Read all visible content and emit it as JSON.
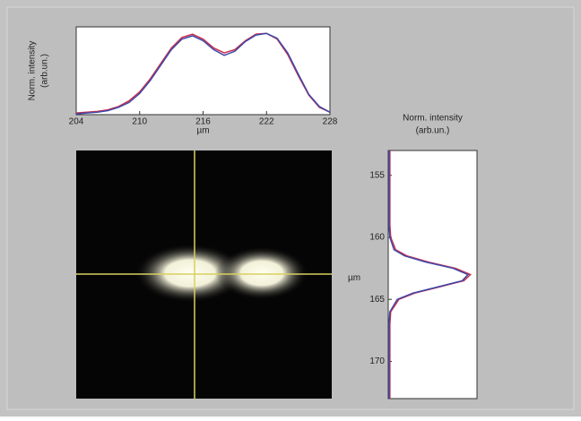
{
  "chart_data": [
    {
      "type": "line",
      "ylabel": [
        "Norm. intensity",
        "(arb.un.)"
      ],
      "xlabel": "µm",
      "x": [
        204,
        205,
        206,
        207,
        208,
        209,
        210,
        211,
        212,
        213,
        214,
        215,
        216,
        217,
        218,
        219,
        220,
        221,
        222,
        223,
        224,
        225,
        226,
        227,
        228
      ],
      "xlim": [
        204,
        228
      ],
      "xticks": [
        204,
        210,
        216,
        222,
        228
      ],
      "ylim": [
        0,
        1.08
      ],
      "series": [
        {
          "color": "#c8304e",
          "values": [
            0.02,
            0.03,
            0.04,
            0.06,
            0.1,
            0.17,
            0.28,
            0.44,
            0.63,
            0.82,
            0.95,
            0.99,
            0.93,
            0.82,
            0.76,
            0.8,
            0.91,
            0.99,
            1.0,
            0.93,
            0.74,
            0.48,
            0.24,
            0.09,
            0.03
          ]
        },
        {
          "color": "#4048a8",
          "values": [
            0.01,
            0.02,
            0.03,
            0.05,
            0.09,
            0.15,
            0.26,
            0.42,
            0.61,
            0.8,
            0.93,
            0.97,
            0.91,
            0.8,
            0.73,
            0.78,
            0.9,
            0.98,
            1.0,
            0.94,
            0.76,
            0.5,
            0.25,
            0.1,
            0.03
          ]
        }
      ]
    },
    {
      "type": "vprofile",
      "title": [
        "Norm. intensity",
        "(arb.un.)"
      ],
      "ylabel": "µm",
      "y": [
        153,
        154,
        155,
        156,
        157,
        158,
        159,
        160,
        161,
        161.5,
        162,
        162.5,
        163,
        163.5,
        164,
        164.5,
        165,
        166,
        167,
        168,
        169,
        170,
        171,
        172,
        173
      ],
      "ylim": [
        153,
        173
      ],
      "yticks": [
        155,
        160,
        165,
        170
      ],
      "xlim": [
        0,
        1.08
      ],
      "series": [
        {
          "color": "#c8304e",
          "values": [
            0.02,
            0.02,
            0.02,
            0.02,
            0.02,
            0.02,
            0.02,
            0.03,
            0.09,
            0.23,
            0.49,
            0.82,
            1.0,
            0.92,
            0.62,
            0.32,
            0.13,
            0.03,
            0.02,
            0.02,
            0.02,
            0.02,
            0.02,
            0.02,
            0.02
          ]
        },
        {
          "color": "#4048a8",
          "values": [
            0.01,
            0.01,
            0.01,
            0.01,
            0.01,
            0.01,
            0.01,
            0.02,
            0.07,
            0.2,
            0.46,
            0.79,
            0.97,
            0.9,
            0.6,
            0.3,
            0.11,
            0.02,
            0.01,
            0.01,
            0.01,
            0.01,
            0.01,
            0.01,
            0.01
          ]
        }
      ]
    }
  ]
}
